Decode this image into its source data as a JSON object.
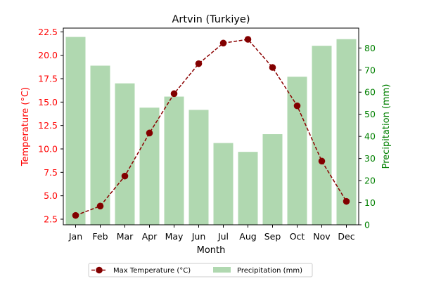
{
  "chart_data": {
    "type": "bar+line",
    "title": "Artvin (Turkiye)",
    "xlabel": "Month",
    "ylabel_left": "Temperature (°C)",
    "ylabel_right": "Precipitation (mm)",
    "categories": [
      "Jan",
      "Feb",
      "Mar",
      "Apr",
      "May",
      "Jun",
      "Jul",
      "Aug",
      "Sep",
      "Oct",
      "Nov",
      "Dec"
    ],
    "series": [
      {
        "name": "Max Temperature (°C)",
        "type": "line",
        "axis": "left",
        "color": "#8b0000",
        "style": "dashed",
        "marker": "circle",
        "values": [
          2.9,
          3.9,
          7.1,
          11.7,
          15.9,
          19.1,
          21.3,
          21.7,
          18.7,
          14.6,
          8.7,
          4.4
        ]
      },
      {
        "name": "Precipitation (mm)",
        "type": "bar",
        "axis": "right",
        "color": "#b0d8b0",
        "values": [
          85,
          72,
          64,
          53,
          58,
          52,
          37,
          33,
          41,
          67,
          81,
          84
        ]
      }
    ],
    "ylim_left": [
      1.9,
      22.9
    ],
    "yticks_left": [
      2.5,
      5.0,
      7.5,
      10.0,
      12.5,
      15.0,
      17.5,
      20.0,
      22.5
    ],
    "ylim_right": [
      0,
      89
    ],
    "yticks_right": [
      0,
      10,
      20,
      30,
      40,
      50,
      60,
      70,
      80
    ],
    "left_axis_color": "#ff0000",
    "right_axis_color": "#008000",
    "grid": false,
    "legend_position": "bottom-center"
  }
}
